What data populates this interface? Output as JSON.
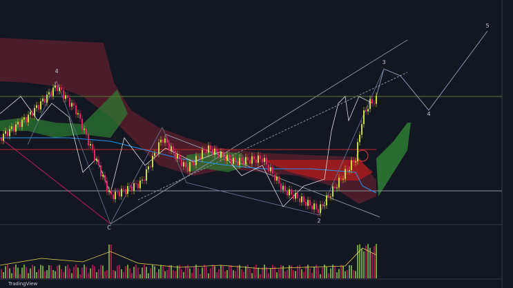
{
  "wave_labels": [
    "4",
    "3",
    "5",
    "4",
    "C",
    "2"
  ],
  "brand": "TradingView"
}
